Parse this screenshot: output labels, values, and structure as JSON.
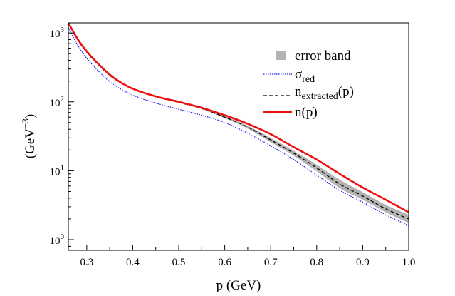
{
  "chart_data": {
    "type": "line",
    "xlabel": "p (GeV)",
    "ylabel": "(GeV",
    "ylabel_sup": "−3",
    "ylabel_close": ")",
    "xlim": [
      0.26,
      1.0
    ],
    "ylim": [
      0.7,
      1400
    ],
    "yscale": "log",
    "x_ticks": [
      0.3,
      0.4,
      0.5,
      0.6,
      0.7,
      0.8,
      0.9
    ],
    "x_tick_labels": [
      "0.3",
      "0.4",
      "0.5",
      "0.6",
      "0.7",
      "0.8",
      "0.9",
      "1.0"
    ],
    "x_tick_values": [
      0.3,
      0.4,
      0.5,
      0.6,
      0.7,
      0.8,
      0.9,
      1.0
    ],
    "y_tick_values": [
      1,
      10,
      100,
      1000
    ],
    "y_tick_labels": [
      {
        "base": "10",
        "exp": "0"
      },
      {
        "base": "10",
        "exp": "1"
      },
      {
        "base": "10",
        "exp": "2"
      },
      {
        "base": "10",
        "exp": "3"
      }
    ],
    "legend_position": "top-right",
    "legend": [
      {
        "key": "band",
        "label": "error band",
        "sub": "",
        "after": ""
      },
      {
        "key": "sigma",
        "label": "σ",
        "sub": "red",
        "after": ""
      },
      {
        "key": "next",
        "label": "n",
        "sub": "extracted",
        "after": "(p)"
      },
      {
        "key": "n",
        "label": "n(p)",
        "sub": "",
        "after": ""
      }
    ],
    "series": [
      {
        "key": "n",
        "color": "#ee1111",
        "style": "solid",
        "x": [
          0.26,
          0.28,
          0.3,
          0.33,
          0.36,
          0.4,
          0.45,
          0.5,
          0.55,
          0.6,
          0.65,
          0.7,
          0.75,
          0.8,
          0.85,
          0.9,
          0.95,
          1.0
        ],
        "y": [
          1400,
          820,
          540,
          330,
          220,
          155,
          120,
          100,
          82,
          64,
          48,
          34,
          22,
          14.5,
          9.0,
          5.7,
          3.8,
          2.5
        ]
      },
      {
        "key": "next",
        "color": "#000000",
        "style": "dashed",
        "x": [
          0.26,
          0.28,
          0.3,
          0.33,
          0.36,
          0.4,
          0.45,
          0.5,
          0.55,
          0.6,
          0.65,
          0.7,
          0.75,
          0.8,
          0.85,
          0.9,
          0.95,
          1.0
        ],
        "y": [
          1400,
          800,
          525,
          320,
          215,
          153,
          119,
          98,
          80,
          60,
          43,
          28,
          18,
          11.0,
          6.4,
          4.3,
          2.8,
          2.0
        ]
      },
      {
        "key": "sigma",
        "color": "#1a1aee",
        "style": "dotted",
        "x": [
          0.26,
          0.28,
          0.3,
          0.33,
          0.36,
          0.4,
          0.45,
          0.5,
          0.55,
          0.6,
          0.65,
          0.7,
          0.75,
          0.8,
          0.85,
          0.9,
          0.95,
          1.0
        ],
        "y": [
          1200,
          670,
          430,
          260,
          175,
          125,
          96,
          78,
          64,
          50,
          35,
          23,
          14.5,
          8.6,
          5.2,
          3.5,
          2.3,
          1.6
        ]
      }
    ],
    "band": {
      "color": "#b3b3b3",
      "x": [
        0.55,
        0.6,
        0.65,
        0.7,
        0.75,
        0.8,
        0.85,
        0.9,
        0.95,
        1.0
      ],
      "upper": [
        81,
        62,
        45,
        30,
        19.5,
        12.2,
        7.4,
        4.9,
        3.2,
        2.3
      ],
      "lower": [
        79,
        58,
        41,
        26,
        16.5,
        9.8,
        5.6,
        3.8,
        2.5,
        1.75
      ]
    }
  }
}
